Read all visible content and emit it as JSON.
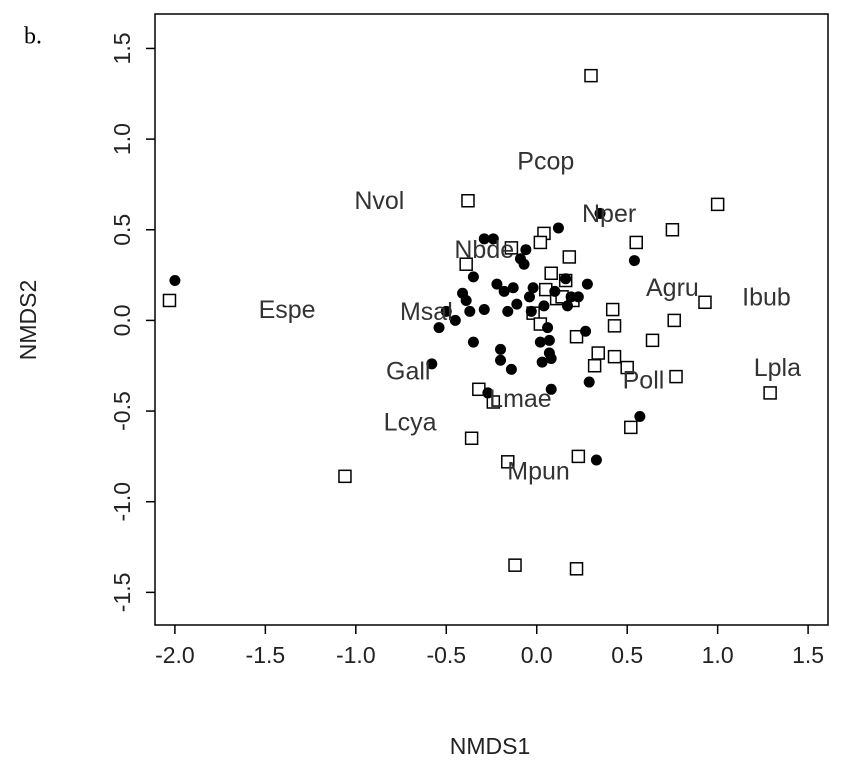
{
  "chart_data": {
    "type": "scatter",
    "panel_label": "b.",
    "xlabel": "NMDS1",
    "ylabel": "NMDS2",
    "xlim": [
      -2.11,
      1.61
    ],
    "ylim": [
      -1.68,
      1.69
    ],
    "xticks": [
      {
        "value": -2.0,
        "label": "-2.0"
      },
      -1.5,
      {
        "value": -1.0,
        "label": "-1.0"
      },
      -0.5,
      {
        "value": 0.0,
        "label": "0.0"
      },
      0.5,
      {
        "value": 1.0,
        "label": "1.0"
      },
      1.5
    ],
    "yticks": [
      -1.5,
      {
        "value": -1.0,
        "label": "-1.0"
      },
      -0.5,
      {
        "value": 0.0,
        "label": "0.0"
      },
      0.5,
      {
        "value": 1.0,
        "label": "1.0"
      },
      1.5
    ],
    "series": [
      {
        "marker": "square",
        "color": "#000000",
        "x": [
          -2.03,
          -1.06,
          -0.38,
          -0.36,
          -0.39,
          -0.32,
          -0.24,
          -0.14,
          -0.12,
          0.04,
          0.08,
          -0.02,
          0.02,
          0.23,
          0.22,
          0.3,
          1.0,
          0.75,
          0.55,
          0.18,
          0.05,
          0.11,
          0.14,
          0.16,
          0.2,
          0.02,
          0.22,
          0.34,
          0.42,
          0.43,
          0.43,
          0.32,
          0.5,
          0.52,
          0.64,
          0.76,
          0.77,
          0.93,
          1.29,
          -0.16
        ],
        "y": [
          0.11,
          -0.86,
          0.66,
          -0.65,
          0.31,
          -0.38,
          -0.45,
          0.4,
          -1.35,
          0.48,
          0.26,
          0.04,
          0.43,
          -0.75,
          -1.37,
          1.35,
          0.64,
          0.5,
          0.43,
          0.35,
          0.17,
          0.12,
          0.13,
          0.22,
          0.11,
          -0.02,
          -0.09,
          -0.18,
          0.06,
          -0.03,
          -0.2,
          -0.25,
          -0.26,
          -0.59,
          -0.11,
          0.0,
          -0.31,
          0.1,
          -0.4,
          -0.78
        ]
      },
      {
        "marker": "circle",
        "color": "#000000",
        "x": [
          -2.0,
          -0.58,
          -0.54,
          -0.5,
          -0.45,
          -0.41,
          -0.39,
          -0.37,
          -0.35,
          -0.35,
          -0.29,
          -0.29,
          -0.24,
          -0.22,
          -0.2,
          -0.2,
          -0.18,
          -0.16,
          -0.14,
          -0.13,
          -0.11,
          -0.09,
          -0.07,
          -0.06,
          -0.04,
          -0.03,
          -0.02,
          0.02,
          0.03,
          0.04,
          0.06,
          0.07,
          0.07,
          0.08,
          0.08,
          0.1,
          0.12,
          0.16,
          0.17,
          0.19,
          0.23,
          0.28,
          0.27,
          0.29,
          0.33,
          0.35,
          0.54,
          0.57,
          -0.27
        ],
        "y": [
          0.22,
          -0.24,
          -0.04,
          0.05,
          0.0,
          0.15,
          0.11,
          0.05,
          -0.12,
          0.24,
          0.45,
          0.06,
          0.45,
          0.2,
          -0.16,
          -0.22,
          0.16,
          0.05,
          -0.27,
          0.18,
          0.09,
          0.34,
          0.31,
          0.39,
          0.13,
          0.05,
          0.18,
          -0.12,
          -0.23,
          0.08,
          -0.04,
          -0.18,
          -0.11,
          -0.21,
          -0.38,
          0.16,
          0.51,
          0.23,
          0.08,
          0.13,
          0.13,
          0.2,
          -0.06,
          -0.34,
          -0.77,
          0.59,
          0.33,
          -0.53,
          -0.4
        ]
      }
    ],
    "annotations": [
      {
        "text": "Pcop",
        "x": 0.05,
        "y": 0.87
      },
      {
        "text": "Nvol",
        "x": -0.87,
        "y": 0.65
      },
      {
        "text": "Nper",
        "x": 0.4,
        "y": 0.58
      },
      {
        "text": "Nbde",
        "x": -0.29,
        "y": 0.38
      },
      {
        "text": "Agru",
        "x": 0.75,
        "y": 0.17
      },
      {
        "text": "Ibub",
        "x": 1.27,
        "y": 0.12
      },
      {
        "text": "Espe",
        "x": -1.38,
        "y": 0.05
      },
      {
        "text": "Msal",
        "x": -0.61,
        "y": 0.04
      },
      {
        "text": "Gall",
        "x": -0.71,
        "y": -0.29
      },
      {
        "text": "Lpla",
        "x": 1.33,
        "y": -0.27
      },
      {
        "text": "Poll",
        "x": 0.59,
        "y": -0.34
      },
      {
        "text": "Lmae",
        "x": -0.09,
        "y": -0.44
      },
      {
        "text": "Lcya",
        "x": -0.7,
        "y": -0.57
      },
      {
        "text": "Mpun",
        "x": 0.01,
        "y": -0.84
      }
    ]
  }
}
